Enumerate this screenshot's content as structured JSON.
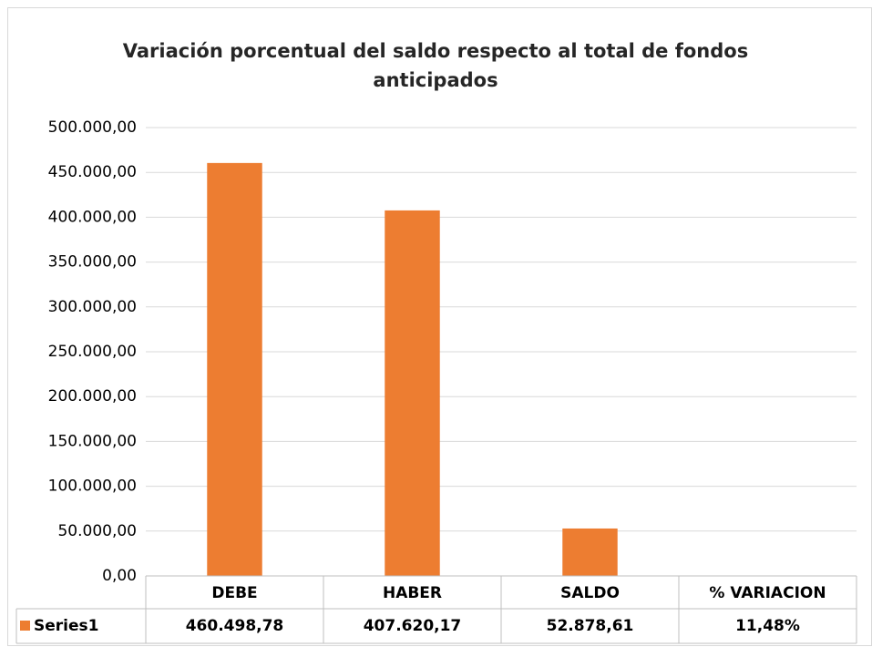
{
  "chart_data": {
    "type": "bar",
    "title": "Variación porcentual del saldo respecto al total de fondos anticipados",
    "categories": [
      "DEBE",
      "HABER",
      "SALDO",
      "% VARIACION"
    ],
    "series": [
      {
        "name": "Series1",
        "color": "#ed7d31",
        "values": [
          460498.78,
          407620.17,
          52878.61,
          11.48
        ],
        "value_labels": [
          "460.498,78",
          "407.620,17",
          "52.878,61",
          "11,48%"
        ]
      }
    ],
    "ylim": [
      0,
      500000
    ],
    "yticks": [
      {
        "value": 0,
        "label": "0,00"
      },
      {
        "value": 50000,
        "label": "50.000,00"
      },
      {
        "value": 100000,
        "label": "100.000,00"
      },
      {
        "value": 150000,
        "label": "150.000,00"
      },
      {
        "value": 200000,
        "label": "200.000,00"
      },
      {
        "value": 250000,
        "label": "250.000,00"
      },
      {
        "value": 300000,
        "label": "300.000,00"
      },
      {
        "value": 350000,
        "label": "350.000,00"
      },
      {
        "value": 400000,
        "label": "400.000,00"
      },
      {
        "value": 450000,
        "label": "450.000,00"
      },
      {
        "value": 500000,
        "label": "500.000,00"
      }
    ],
    "grid": true,
    "data_table": true
  }
}
